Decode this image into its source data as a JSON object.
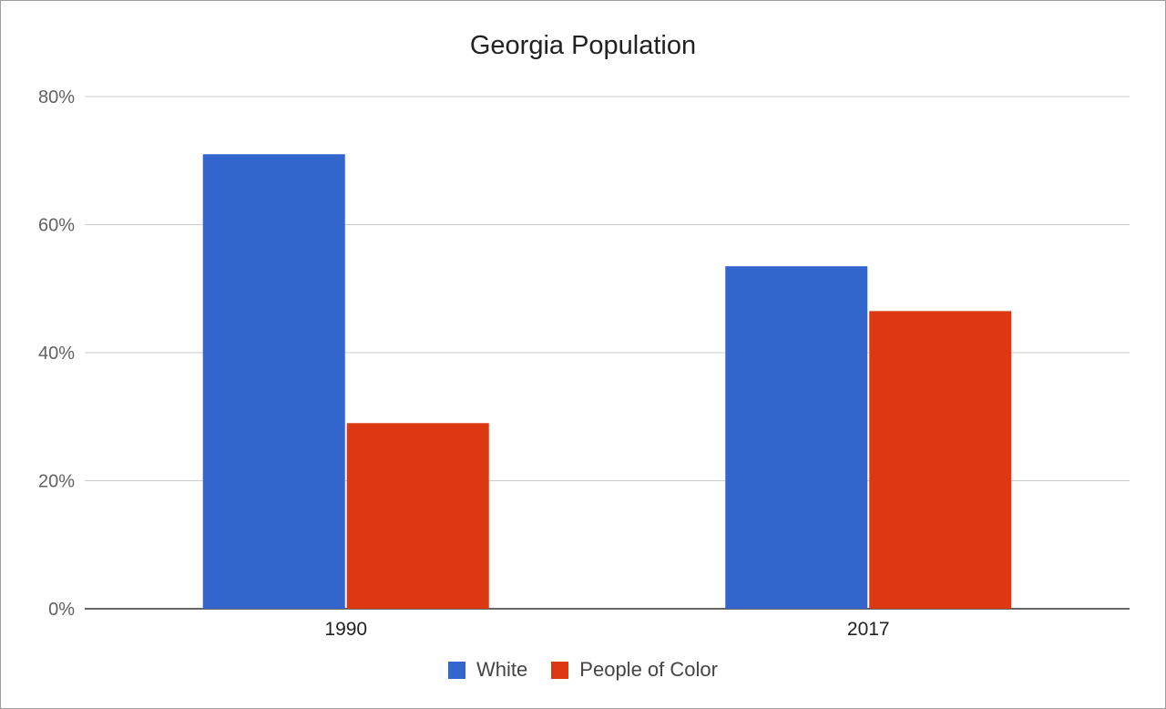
{
  "chart_data": {
    "type": "bar",
    "title": "Georgia Population",
    "xlabel": "",
    "ylabel": "",
    "categories": [
      "1990",
      "2017"
    ],
    "series": [
      {
        "name": "White",
        "values": [
          71,
          53.5
        ],
        "color": "#3366cc"
      },
      {
        "name": "People of Color",
        "values": [
          29,
          46.5
        ],
        "color": "#dc3912"
      }
    ],
    "ylim": [
      0,
      80
    ],
    "yticks": [
      0,
      20,
      40,
      60,
      80
    ],
    "ytick_labels": [
      "0%",
      "20%",
      "40%",
      "60%",
      "80%"
    ],
    "grid": true,
    "legend_position": "bottom"
  }
}
